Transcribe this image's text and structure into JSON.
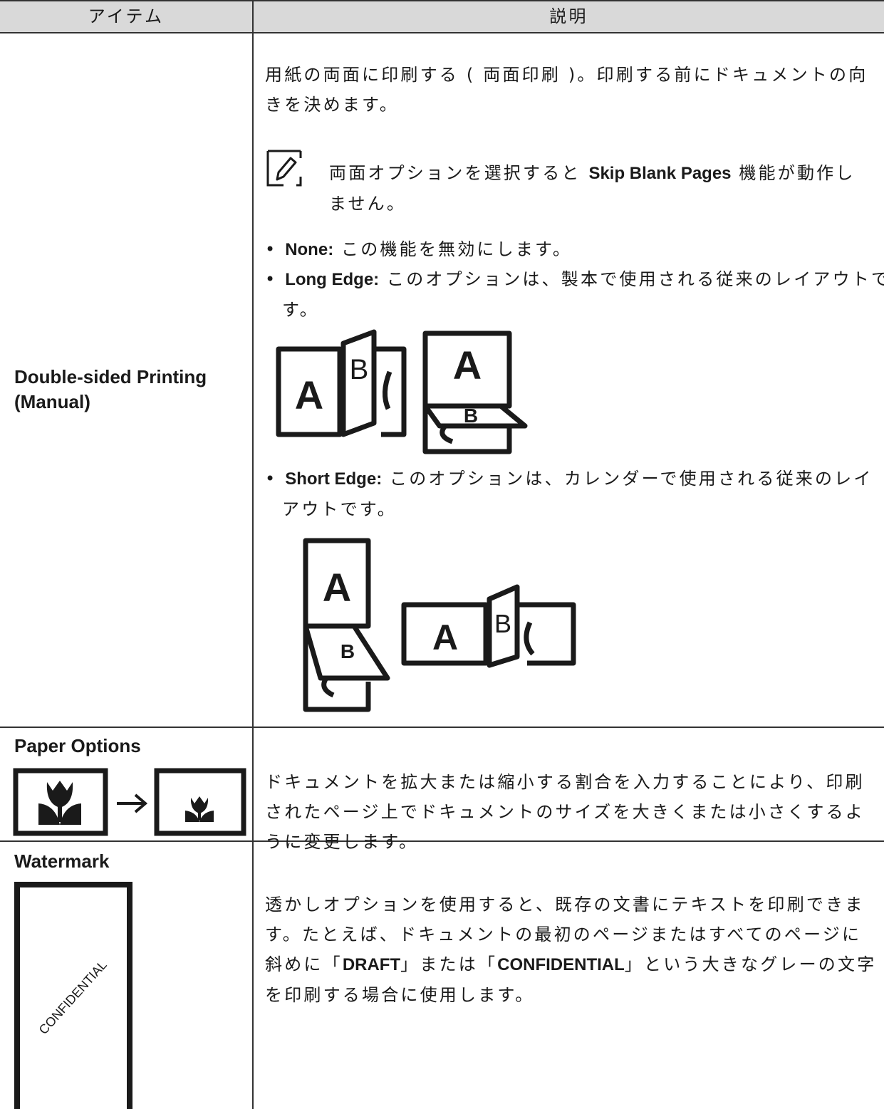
{
  "table": {
    "header": [
      "アイテム",
      "説明"
    ],
    "rows": [
      {
        "item": "Double-sided Printing (Manual)",
        "description": {
          "intro": "用紙の両面に印刷する ( 両面印刷 )。印刷する前にドキュメントの向きを決めます。",
          "note": [
            "両面オプションを選択すると ",
            "Skip Blank Pages",
            " 機能が動作しません。"
          ],
          "options": [
            {
              "name": "None:",
              "text": " この機能を無効にします。"
            },
            {
              "name": "Long Edge:",
              "text": " このオプションは、製本で使用される従来のレイアウトです。"
            },
            {
              "name": "Short Edge:",
              "text": " このオプションは、カレンダーで使用される従来のレイアウトです。"
            }
          ]
        },
        "figure_letters": [
          "A",
          "B"
        ]
      },
      {
        "item": "Paper Options",
        "description": "ドキュメントを拡大または縮小する割合を入力することにより、印刷されたページ上でドキュメントのサイズを大きくまたは小さくするように変更します。"
      },
      {
        "item": "Watermark",
        "description": [
          "透かしオプションを使用すると、既存の文書にテキストを印刷できます。たとえば、ドキュメントの最初のページまたはすべてのページに斜めに「",
          "DRAFT",
          "」または「",
          "CONFIDENTIAL",
          "」という大きなグレーの文字を印刷する場合に使用します。"
        ],
        "figure_text": "CONFIDENTIAL"
      }
    ]
  }
}
